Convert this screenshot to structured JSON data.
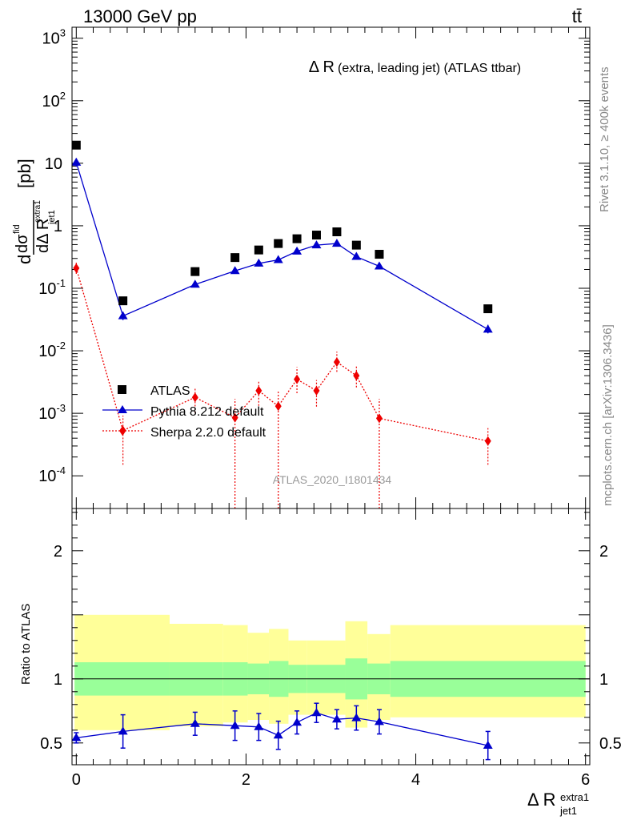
{
  "header": {
    "energy_label": "13000 GeV pp",
    "process_label": "tt̄"
  },
  "side_text": {
    "rivet": "Rivet 3.1.10, ≥ 400k events",
    "mcplots": "mcplots.cern.ch [arXiv:1306.3436]"
  },
  "chart_data": [
    {
      "type": "scatter",
      "panel": "main",
      "title_main": "Δ R",
      "title_detail": "(extra, leading jet) (ATLAS ttbar)",
      "watermark": "ATLAS_2020_I1801434",
      "y_unit": "[pb]",
      "y_scale": "log",
      "ylim": [
        3e-05,
        1500
      ],
      "xlim": [
        -0.05,
        6.05
      ],
      "x_ticks": [
        0,
        2,
        4,
        6
      ],
      "y_ticks": [
        {
          "value": 0.0001,
          "label": "10^-4"
        },
        {
          "value": 0.001,
          "label": "10^-3"
        },
        {
          "value": 0.01,
          "label": "10^-2"
        },
        {
          "value": 0.1,
          "label": "10^-1"
        },
        {
          "value": 1,
          "label": "1"
        },
        {
          "value": 10,
          "label": "10"
        },
        {
          "value": 100,
          "label": "10^2"
        },
        {
          "value": 1000,
          "label": "10^3"
        }
      ],
      "legend_position": "lower-left",
      "series": [
        {
          "name": "ATLAS",
          "color": "#000000",
          "marker": "square",
          "x": [
            0.0,
            0.55,
            1.4,
            1.87,
            2.15,
            2.38,
            2.6,
            2.83,
            3.07,
            3.3,
            3.57,
            4.85
          ],
          "y": [
            19.5,
            0.063,
            0.185,
            0.31,
            0.41,
            0.52,
            0.62,
            0.71,
            0.8,
            0.49,
            0.35,
            0.047
          ]
        },
        {
          "name": "Pythia 8.212 default",
          "color": "#0000cc",
          "marker": "triangle",
          "line": "solid",
          "x": [
            0.0,
            0.55,
            1.4,
            1.87,
            2.15,
            2.38,
            2.6,
            2.83,
            3.07,
            3.3,
            3.57,
            4.85
          ],
          "y": [
            10.3,
            0.036,
            0.115,
            0.19,
            0.25,
            0.285,
            0.39,
            0.49,
            0.52,
            0.32,
            0.225,
            0.022
          ],
          "err_lo": [
            8.8,
            0.031,
            0.104,
            0.172,
            0.224,
            0.258,
            0.355,
            0.45,
            0.48,
            0.292,
            0.205,
            0.019
          ],
          "err_hi": [
            12.0,
            0.042,
            0.127,
            0.21,
            0.277,
            0.315,
            0.43,
            0.535,
            0.565,
            0.352,
            0.248,
            0.026
          ]
        },
        {
          "name": "Sherpa 2.2.0 default",
          "color": "#ee0000",
          "marker": "diamond",
          "line": "dotted",
          "x": [
            0.0,
            0.55,
            1.4,
            1.87,
            2.15,
            2.38,
            2.6,
            2.83,
            3.07,
            3.3,
            3.57,
            4.85
          ],
          "y": [
            0.21,
            0.00053,
            0.0018,
            0.00085,
            0.0023,
            0.0013,
            0.0035,
            0.0023,
            0.0066,
            0.004,
            0.00083,
            0.00036
          ],
          "err_lo": [
            0.17,
            0.00015,
            0.00102,
            2e-05,
            0.00132,
            2e-05,
            0.0021,
            0.00128,
            0.0046,
            0.0026,
            2e-05,
            0.00015
          ],
          "err_hi": [
            0.26,
            0.00092,
            0.0026,
            0.0017,
            0.0033,
            0.0023,
            0.0055,
            0.0034,
            0.0097,
            0.0058,
            0.0017,
            0.00058
          ]
        }
      ]
    },
    {
      "type": "scatter",
      "panel": "ratio",
      "ylabel": "Ratio to ATLAS",
      "ylim": [
        0.33,
        2.33
      ],
      "y_ticks": [
        0.5,
        1,
        2
      ],
      "xlim": [
        -0.05,
        6.05
      ],
      "x_ticks": [
        0,
        2,
        4,
        6
      ],
      "reference_line": 1,
      "uncertainty_bands": [
        {
          "x0": -0.02,
          "x1": 1.1,
          "inner": [
            0.87,
            1.13
          ],
          "outer": [
            0.6,
            1.5
          ]
        },
        {
          "x0": 1.1,
          "x1": 1.73,
          "inner": [
            0.87,
            1.13
          ],
          "outer": [
            0.63,
            1.43
          ]
        },
        {
          "x0": 1.73,
          "x1": 2.02,
          "inner": [
            0.87,
            1.13
          ],
          "outer": [
            0.66,
            1.42
          ]
        },
        {
          "x0": 2.02,
          "x1": 2.27,
          "inner": [
            0.88,
            1.12
          ],
          "outer": [
            0.68,
            1.36
          ]
        },
        {
          "x0": 2.27,
          "x1": 2.5,
          "inner": [
            0.86,
            1.14
          ],
          "outer": [
            0.65,
            1.39
          ]
        },
        {
          "x0": 2.5,
          "x1": 2.72,
          "inner": [
            0.89,
            1.11
          ],
          "outer": [
            0.72,
            1.3
          ]
        },
        {
          "x0": 2.72,
          "x1": 3.17,
          "inner": [
            0.89,
            1.11
          ],
          "outer": [
            0.72,
            1.3
          ]
        },
        {
          "x0": 3.17,
          "x1": 3.43,
          "inner": [
            0.84,
            1.16
          ],
          "outer": [
            0.62,
            1.45
          ]
        },
        {
          "x0": 3.43,
          "x1": 3.7,
          "inner": [
            0.88,
            1.12
          ],
          "outer": [
            0.68,
            1.35
          ]
        },
        {
          "x0": 3.7,
          "x1": 6.0,
          "inner": [
            0.86,
            1.14
          ],
          "outer": [
            0.7,
            1.42
          ]
        }
      ],
      "band_colors": {
        "inner": "#99ff99",
        "outer": "#ffff99"
      },
      "series": [
        {
          "name": "Pythia 8.212 default",
          "color": "#0000cc",
          "marker": "triangle",
          "x": [
            0.0,
            0.55,
            1.4,
            1.87,
            2.15,
            2.38,
            2.6,
            2.83,
            3.07,
            3.3,
            3.57,
            4.85
          ],
          "y": [
            0.54,
            0.59,
            0.65,
            0.635,
            0.625,
            0.56,
            0.66,
            0.735,
            0.685,
            0.695,
            0.665,
            0.48
          ],
          "err_lo": [
            0.5,
            0.46,
            0.56,
            0.52,
            0.52,
            0.45,
            0.57,
            0.66,
            0.61,
            0.6,
            0.57,
            0.37
          ],
          "err_hi": [
            0.58,
            0.72,
            0.74,
            0.75,
            0.73,
            0.67,
            0.75,
            0.81,
            0.76,
            0.79,
            0.76,
            0.59
          ]
        }
      ]
    }
  ],
  "x_axis_label": "Δ R",
  "x_axis_sup": "extra1",
  "x_axis_sub": "jet1"
}
